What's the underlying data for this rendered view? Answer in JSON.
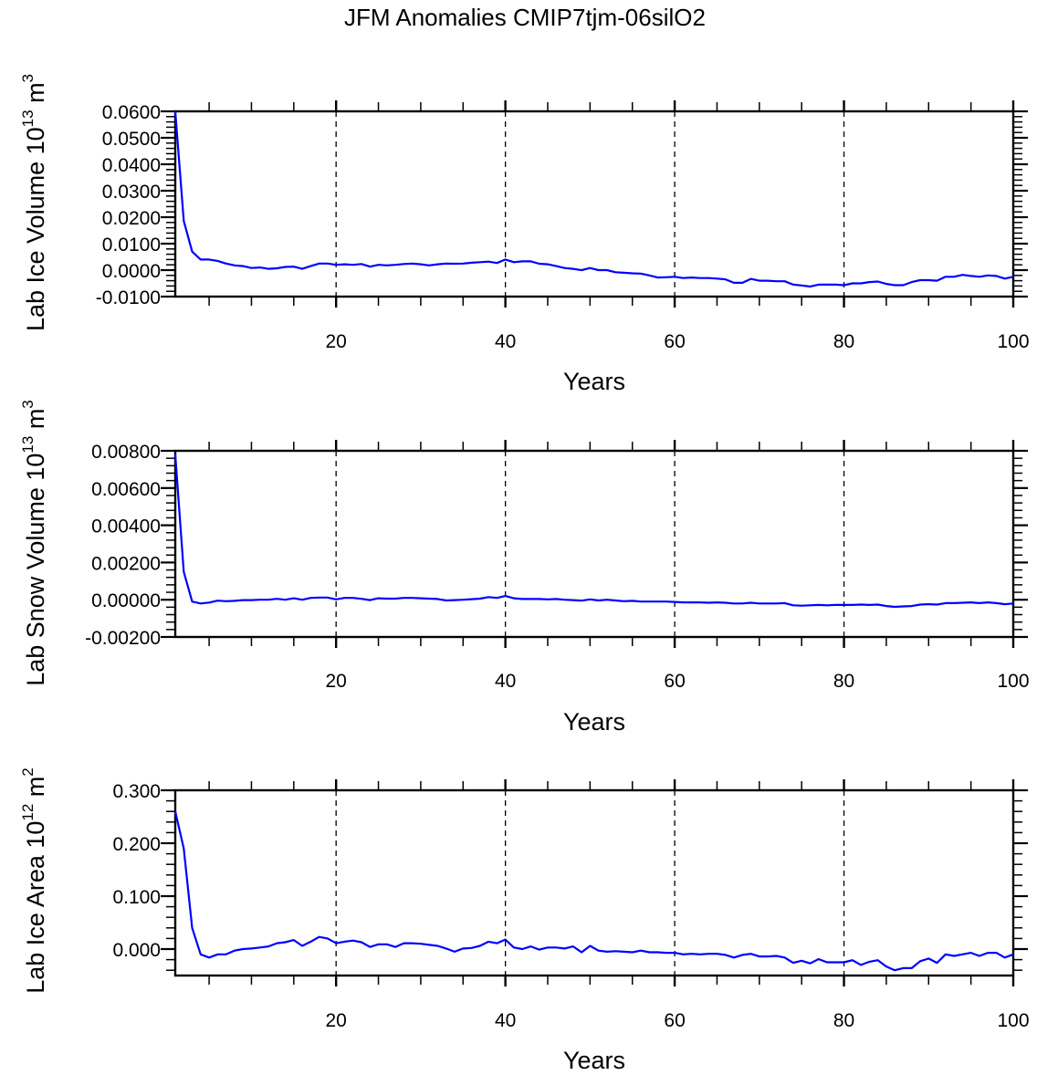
{
  "title": "JFM Anomalies CMIP7tjm-06silO2",
  "colors": {
    "line": "#0000ff",
    "axis": "#000000"
  },
  "chart_data": [
    {
      "type": "line",
      "xlabel": "Years",
      "ylabel": "Lab Ice Volume 10",
      "ylabel_exp": "13",
      "ylabel_unit": " m",
      "ylabel_unit_exp": "3",
      "xlim": [
        1,
        100
      ],
      "ylim": [
        -0.01,
        0.06
      ],
      "xticks": [
        20,
        40,
        60,
        80,
        100
      ],
      "xtick_labels": [
        "20",
        "40",
        "60",
        "80",
        "100"
      ],
      "yticks": [
        -0.01,
        0,
        0.01,
        0.02,
        0.03,
        0.04,
        0.05,
        0.06
      ],
      "ytick_labels": [
        "-0.0100",
        "0.0000",
        "0.0100",
        "0.0200",
        "0.0300",
        "0.0400",
        "0.0500",
        "0.0600"
      ],
      "grid": "dashed vertical at major x ticks",
      "x_start": 1,
      "values": [
        0.06,
        0.0186,
        0.007,
        0.004,
        0.004,
        0.0035,
        0.0025,
        0.0018,
        0.0015,
        0.0008,
        0.001,
        0.0005,
        0.0007,
        0.0012,
        0.0013,
        0.0005,
        0.0015,
        0.0025,
        0.0025,
        0.002,
        0.0022,
        0.002,
        0.0023,
        0.0013,
        0.002,
        0.0018,
        0.002,
        0.0023,
        0.0025,
        0.0022,
        0.0018,
        0.0022,
        0.0025,
        0.0024,
        0.0025,
        0.0028,
        0.003,
        0.0032,
        0.0027,
        0.004,
        0.003,
        0.0033,
        0.0033,
        0.0024,
        0.0022,
        0.0015,
        0.0008,
        0.0005,
        0.0,
        0.0008,
        0.0,
        0.0,
        -0.0008,
        -0.001,
        -0.0012,
        -0.0013,
        -0.002,
        -0.0028,
        -0.0027,
        -0.0025,
        -0.003,
        -0.0028,
        -0.003,
        -0.003,
        -0.0032,
        -0.0035,
        -0.0048,
        -0.0048,
        -0.0033,
        -0.004,
        -0.004,
        -0.0042,
        -0.0042,
        -0.0055,
        -0.0058,
        -0.0062,
        -0.0055,
        -0.0055,
        -0.0055,
        -0.0057,
        -0.005,
        -0.005,
        -0.0045,
        -0.0043,
        -0.0052,
        -0.0057,
        -0.0057,
        -0.0045,
        -0.0038,
        -0.0038,
        -0.004,
        -0.0025,
        -0.0025,
        -0.0018,
        -0.0022,
        -0.0025,
        -0.002,
        -0.0022,
        -0.0032,
        -0.0025
      ]
    },
    {
      "type": "line",
      "xlabel": "Years",
      "ylabel": "Lab Snow Volume 10",
      "ylabel_exp": "13",
      "ylabel_unit": " m",
      "ylabel_unit_exp": "3",
      "xlim": [
        1,
        100
      ],
      "ylim": [
        -0.002,
        0.008
      ],
      "xticks": [
        20,
        40,
        60,
        80,
        100
      ],
      "xtick_labels": [
        "20",
        "40",
        "60",
        "80",
        "100"
      ],
      "yticks": [
        -0.002,
        0,
        0.002,
        0.004,
        0.006,
        0.008
      ],
      "ytick_labels": [
        "-0.00200",
        "0.00000",
        "0.00200",
        "0.00400",
        "0.00600",
        "0.00800"
      ],
      "grid": "dashed vertical at major x ticks",
      "x_start": 1,
      "values": [
        0.0078,
        0.0015,
        -0.0001,
        -0.0002,
        -0.00015,
        -5e-05,
        -8e-05,
        -6e-05,
        -2e-05,
        -2e-05,
        0.0,
        0.0,
        5e-05,
        0.0,
        8e-05,
        0.0,
        0.0001,
        0.00012,
        0.00012,
        2e-05,
        0.0001,
        0.0001,
        5e-05,
        -2e-05,
        8e-05,
        6e-05,
        6e-05,
        0.0001,
        0.0001,
        8e-05,
        6e-05,
        4e-05,
        -4e-05,
        -2e-05,
        0.0,
        3e-05,
        6e-05,
        0.00014,
        0.0001,
        0.0002,
        8e-05,
        4e-05,
        4e-05,
        4e-05,
        2e-05,
        4e-05,
        0.0,
        -2e-05,
        -5e-05,
        2e-05,
        -4e-05,
        0.0,
        -4e-05,
        -8e-05,
        -6e-05,
        -0.0001,
        -0.0001,
        -0.0001,
        -0.0001,
        -0.00012,
        -0.00014,
        -0.00014,
        -0.00014,
        -0.00016,
        -0.00014,
        -0.00016,
        -0.0002,
        -0.0002,
        -0.00016,
        -0.0002,
        -0.0002,
        -0.0002,
        -0.00018,
        -0.0003,
        -0.00032,
        -0.0003,
        -0.00028,
        -0.0003,
        -0.00028,
        -0.00028,
        -0.00028,
        -0.00026,
        -0.00028,
        -0.00026,
        -0.00034,
        -0.00038,
        -0.00036,
        -0.00034,
        -0.00026,
        -0.00024,
        -0.00026,
        -0.00018,
        -0.00018,
        -0.00016,
        -0.00014,
        -0.00018,
        -0.00014,
        -0.00018,
        -0.00024,
        -0.0002
      ]
    },
    {
      "type": "line",
      "xlabel": "Years",
      "ylabel": "Lab Ice Area 10",
      "ylabel_exp": "12",
      "ylabel_unit": " m",
      "ylabel_unit_exp": "2",
      "xlim": [
        1,
        100
      ],
      "ylim": [
        -0.05,
        0.3
      ],
      "xticks": [
        20,
        40,
        60,
        80,
        100
      ],
      "xtick_labels": [
        "20",
        "40",
        "60",
        "80",
        "100"
      ],
      "yticks": [
        0,
        0.1,
        0.2,
        0.3
      ],
      "ytick_labels": [
        "0.000",
        "0.100",
        "0.200",
        "0.300"
      ],
      "grid": "dashed vertical at major x ticks",
      "x_start": 1,
      "values": [
        0.26,
        0.19,
        0.04,
        -0.01,
        -0.016,
        -0.01,
        -0.01,
        -0.003,
        0.0,
        0.001,
        0.003,
        0.005,
        0.011,
        0.013,
        0.017,
        0.006,
        0.014,
        0.023,
        0.02,
        0.011,
        0.014,
        0.016,
        0.013,
        0.004,
        0.009,
        0.009,
        0.004,
        0.011,
        0.011,
        0.01,
        0.008,
        0.006,
        0.001,
        -0.005,
        0.001,
        0.002,
        0.006,
        0.014,
        0.011,
        0.018,
        0.003,
        0.0,
        0.005,
        -0.001,
        0.003,
        0.003,
        0.001,
        0.005,
        -0.006,
        0.006,
        -0.003,
        -0.005,
        -0.004,
        -0.005,
        -0.006,
        -0.003,
        -0.006,
        -0.006,
        -0.007,
        -0.007,
        -0.01,
        -0.009,
        -0.01,
        -0.009,
        -0.009,
        -0.011,
        -0.016,
        -0.011,
        -0.009,
        -0.014,
        -0.014,
        -0.013,
        -0.016,
        -0.026,
        -0.022,
        -0.027,
        -0.019,
        -0.025,
        -0.025,
        -0.025,
        -0.021,
        -0.03,
        -0.024,
        -0.021,
        -0.033,
        -0.04,
        -0.036,
        -0.036,
        -0.023,
        -0.018,
        -0.026,
        -0.01,
        -0.013,
        -0.01,
        -0.007,
        -0.013,
        -0.007,
        -0.007,
        -0.016,
        -0.01
      ]
    }
  ]
}
